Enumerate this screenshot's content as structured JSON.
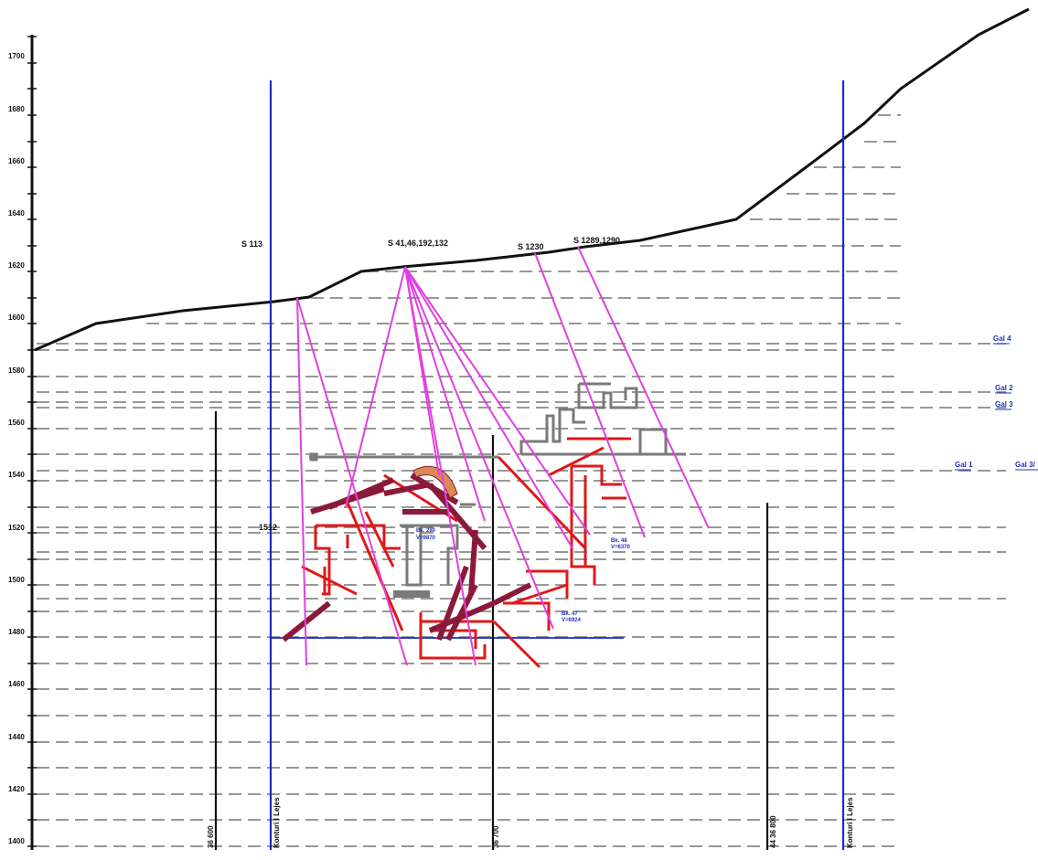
{
  "elevation_axis": {
    "ticks": [
      "1700",
      "1680",
      "1660",
      "1640",
      "1620",
      "1600",
      "1580",
      "1560",
      "1540",
      "1520",
      "1500",
      "1480",
      "1460",
      "1440",
      "1420",
      "1400"
    ]
  },
  "boreholes": [
    {
      "label": "S 113"
    },
    {
      "label": "S 41,46,192,132"
    },
    {
      "label": "S 1230"
    },
    {
      "label": "S 1289,1290"
    }
  ],
  "galleries": [
    {
      "label": "Gal 4"
    },
    {
      "label": "Gal 2"
    },
    {
      "label": "Gal 3"
    },
    {
      "label": "Gal 1"
    },
    {
      "label": "Gal 3/"
    }
  ],
  "profile_lines": [
    {
      "label": "36 600"
    },
    {
      "label": "Konturi I Lejes"
    },
    {
      "label": "36 700"
    },
    {
      "label": "44 36 800"
    },
    {
      "label": "Konturi I Lejes"
    }
  ],
  "annotations": {
    "elev_1512": "1512",
    "note_a1": "Bk. 280",
    "note_a2": "V=9870",
    "note_b1": "Bk. 48",
    "note_b2": "V=6370",
    "note_c1": "Bk. 47",
    "note_c2": "V=6924"
  },
  "colors": {
    "axis": "#111111",
    "terrain": "#111111",
    "license_boundary": "#1a2bd0",
    "boreholes": "#e040e0",
    "workings": "#e01818",
    "stope": "#8b1a3a",
    "old_workings": "#7a7a7a",
    "level_lines": "#777777"
  }
}
